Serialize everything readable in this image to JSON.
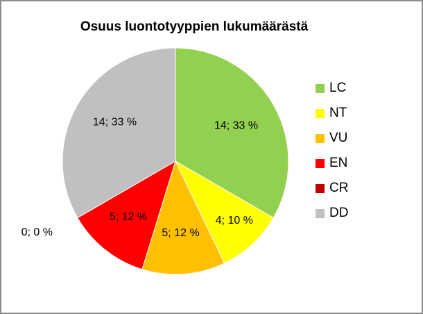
{
  "chart_data": {
    "type": "pie",
    "title": "Osuus luontotyyppien lukumäärästä",
    "categories": [
      "LC",
      "NT",
      "VU",
      "EN",
      "CR",
      "DD"
    ],
    "values": [
      14,
      4,
      5,
      5,
      0,
      14
    ],
    "percents": [
      "33 %",
      "10 %",
      "12 %",
      "12 %",
      "0 %",
      "33 %"
    ],
    "data_labels": [
      "14; 33 %",
      "4; 10 %",
      "5; 12 %",
      "5; 12 %",
      "0; 0 %",
      "14; 33 %"
    ],
    "colors": [
      "#92d050",
      "#ffff00",
      "#ffc000",
      "#ff0000",
      "#c00000",
      "#c0c0c0"
    ],
    "legend_position": "right",
    "start_angle": "12 o'clock, clockwise"
  }
}
